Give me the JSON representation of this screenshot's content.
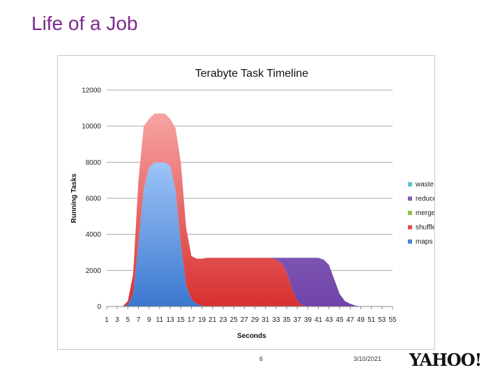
{
  "slide": {
    "title": "Life of a Job",
    "page_number": "6",
    "date": "3/10/2021",
    "logo_text": "YAHOO!"
  },
  "chart_data": {
    "type": "area",
    "stacked": true,
    "title": "Terabyte Task Timeline",
    "xlabel": "Seconds",
    "ylabel": "Running Tasks",
    "ylim": [
      0,
      12000
    ],
    "yticks": [
      0,
      2000,
      4000,
      6000,
      8000,
      10000,
      12000
    ],
    "grid": true,
    "legend_position": "right",
    "x": [
      1,
      2,
      3,
      4,
      5,
      6,
      7,
      8,
      9,
      10,
      11,
      12,
      13,
      14,
      15,
      16,
      17,
      18,
      19,
      20,
      21,
      22,
      23,
      24,
      25,
      26,
      27,
      28,
      29,
      30,
      31,
      32,
      33,
      34,
      35,
      36,
      37,
      38,
      39,
      40,
      41,
      42,
      43,
      44,
      45,
      46,
      47,
      48,
      49,
      50,
      51,
      52,
      53,
      54,
      55
    ],
    "xtick_labels": [
      "1",
      "3",
      "5",
      "7",
      "9",
      "11",
      "13",
      "15",
      "17",
      "19",
      "21",
      "23",
      "25",
      "27",
      "29",
      "31",
      "33",
      "35",
      "37",
      "39",
      "41",
      "43",
      "45",
      "47",
      "49",
      "51",
      "53",
      "55"
    ],
    "series": [
      {
        "name": "maps",
        "color": "#4a86d8",
        "values": [
          0,
          0,
          0,
          0,
          100,
          700,
          3500,
          6500,
          7700,
          8000,
          8000,
          8000,
          7800,
          6500,
          3500,
          1200,
          400,
          150,
          50,
          0,
          0,
          0,
          0,
          0,
          0,
          0,
          0,
          0,
          0,
          0,
          0,
          0,
          0,
          0,
          0,
          0,
          0,
          0,
          0,
          0,
          0,
          0,
          0,
          0,
          0,
          0,
          0,
          0,
          0,
          0,
          0,
          0,
          0,
          0,
          0
        ]
      },
      {
        "name": "shuffle",
        "color": "#e04b4b",
        "values": [
          0,
          0,
          0,
          0,
          200,
          1100,
          3500,
          3500,
          2700,
          2700,
          2700,
          2700,
          2600,
          3400,
          4500,
          3200,
          2400,
          2500,
          2600,
          2700,
          2700,
          2700,
          2700,
          2700,
          2700,
          2700,
          2700,
          2700,
          2700,
          2700,
          2700,
          2700,
          2600,
          2400,
          1900,
          1000,
          300,
          50,
          0,
          0,
          0,
          0,
          0,
          0,
          0,
          0,
          0,
          0,
          0,
          0,
          0,
          0,
          0,
          0,
          0
        ]
      },
      {
        "name": "merge",
        "color": "#8fc040",
        "values": [
          0,
          0,
          0,
          0,
          0,
          0,
          0,
          0,
          0,
          0,
          0,
          0,
          0,
          0,
          0,
          0,
          0,
          0,
          0,
          0,
          0,
          0,
          0,
          0,
          0,
          0,
          0,
          0,
          0,
          0,
          0,
          0,
          0,
          0,
          0,
          0,
          0,
          0,
          0,
          0,
          0,
          0,
          0,
          0,
          0,
          0,
          0,
          0,
          0,
          0,
          0,
          0,
          0,
          0,
          0
        ]
      },
      {
        "name": "reduce",
        "color": "#8a5bb8",
        "values": [
          0,
          0,
          0,
          0,
          0,
          0,
          0,
          0,
          0,
          0,
          0,
          0,
          0,
          0,
          0,
          0,
          0,
          0,
          0,
          0,
          0,
          0,
          0,
          0,
          0,
          0,
          0,
          0,
          0,
          0,
          0,
          0,
          100,
          300,
          800,
          1700,
          2400,
          2650,
          2700,
          2700,
          2700,
          2600,
          2300,
          1500,
          700,
          300,
          150,
          50,
          0,
          0,
          0,
          0,
          0,
          0,
          0
        ]
      },
      {
        "name": "waste",
        "color": "#5fc0d8",
        "values": [
          0,
          0,
          0,
          0,
          0,
          0,
          0,
          0,
          0,
          0,
          0,
          0,
          0,
          0,
          0,
          0,
          0,
          0,
          0,
          0,
          0,
          0,
          0,
          0,
          0,
          0,
          0,
          0,
          0,
          0,
          0,
          0,
          0,
          0,
          0,
          0,
          0,
          0,
          0,
          0,
          0,
          0,
          0,
          0,
          0,
          0,
          0,
          0,
          0,
          0,
          0,
          0,
          0,
          0,
          0
        ]
      }
    ],
    "legend_order": [
      "waste",
      "reduce",
      "merge",
      "shuffle",
      "maps"
    ]
  }
}
